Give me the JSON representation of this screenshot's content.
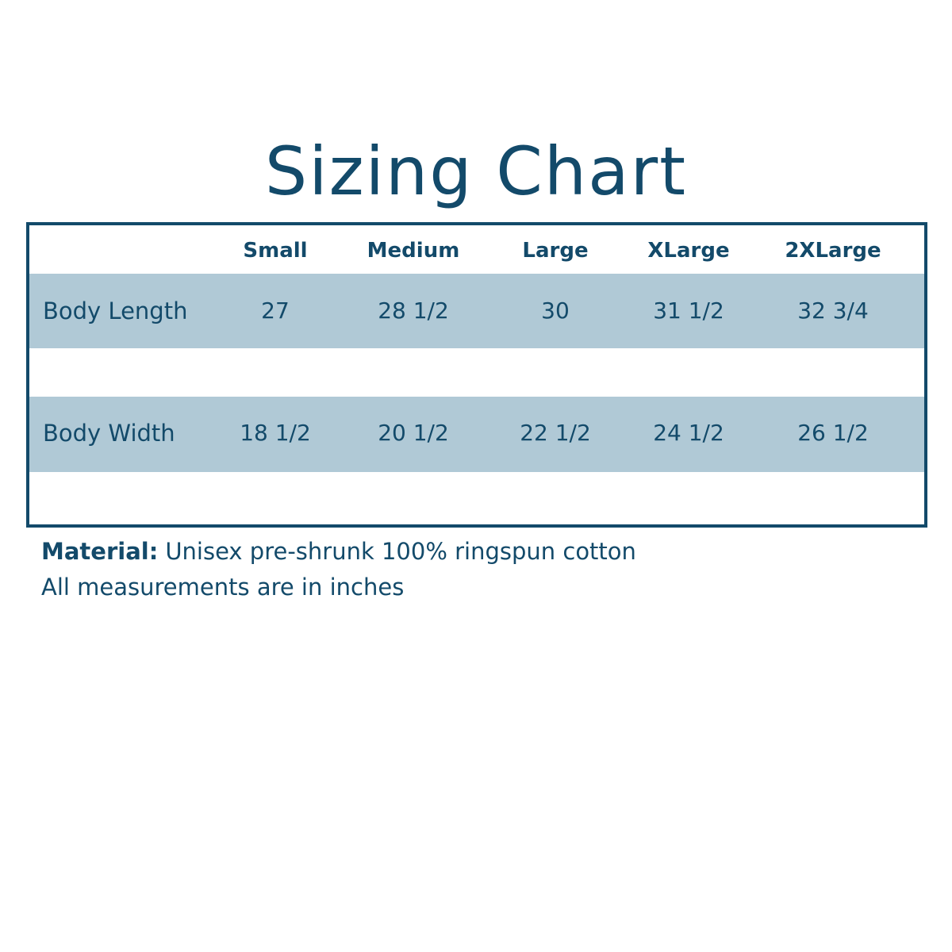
{
  "title": "Sizing Chart",
  "table": {
    "header": [
      "Small",
      "Medium",
      "Large",
      "XLarge",
      "2XLarge"
    ],
    "rows": [
      {
        "label": "Body Length",
        "values": [
          "27",
          "28 1/2",
          "30",
          "31 1/2",
          "32 3/4"
        ]
      },
      {
        "label": "Body Width",
        "values": [
          "18 1/2",
          "20 1/2",
          "22 1/2",
          "24 1/2",
          "26 1/2"
        ]
      }
    ]
  },
  "footer": {
    "material_label": "Material:",
    "material_text": "Unisex pre-shrunk 100% ringspun cotton",
    "note": "All measurements are in inches"
  }
}
